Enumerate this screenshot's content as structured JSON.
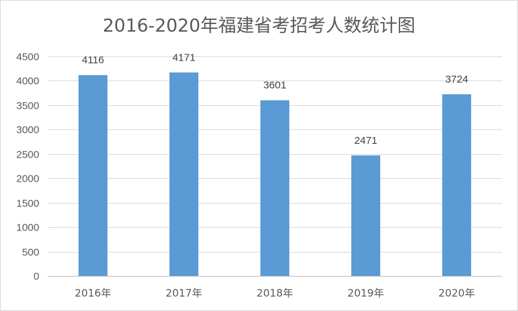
{
  "chart_data": {
    "type": "bar",
    "title": "2016-2020年福建省考招考人数统计图",
    "categories": [
      "2016年",
      "2017年",
      "2018年",
      "2019年",
      "2020年"
    ],
    "values": [
      4116,
      4171,
      3601,
      2471,
      3724
    ],
    "data_labels": [
      "4116",
      "4171",
      "3601",
      "2471",
      "3724"
    ],
    "ylim": [
      0,
      4500
    ],
    "yticks": [
      0,
      500,
      1000,
      1500,
      2000,
      2500,
      3000,
      3500,
      4000,
      4500
    ],
    "ytick_labels": [
      "0",
      "500",
      "1000",
      "1500",
      "2000",
      "2500",
      "3000",
      "3500",
      "4000",
      "4500"
    ],
    "grid": true,
    "legend": "none",
    "colors": {
      "bar": "#5b9bd5"
    }
  }
}
